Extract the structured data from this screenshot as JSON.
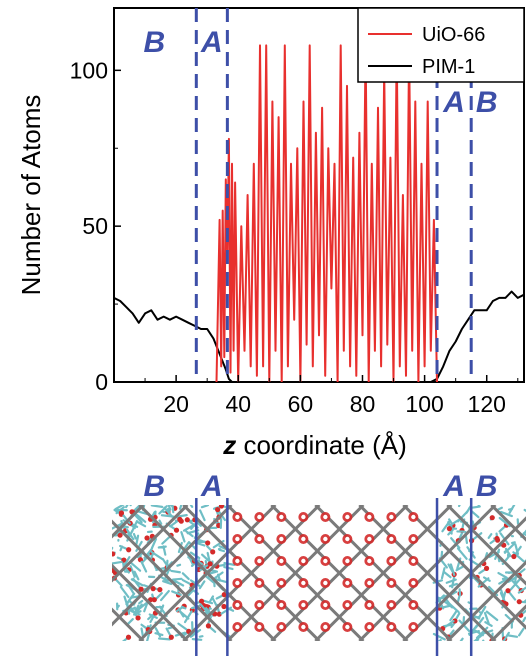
{
  "chart_data": {
    "type": "line",
    "xlabel_italic": "z",
    "xlabel_rest": " coordinate (Å)",
    "ylabel": "Number of Atoms",
    "xlim": [
      0,
      132
    ],
    "ylim": [
      0,
      120
    ],
    "x_ticks": [
      20,
      40,
      60,
      80,
      100,
      120
    ],
    "y_ticks": [
      0,
      50,
      100
    ],
    "legend_position": "top-right",
    "region_boundaries": [
      26.5,
      36.5,
      104.0,
      115.0
    ],
    "region_labels_top": [
      {
        "text": "B",
        "x": 13
      },
      {
        "text": "A",
        "x": 31.5
      },
      {
        "text": "A",
        "x": 109.5
      },
      {
        "text": "B",
        "x": 120
      }
    ],
    "region_labels_bottom": [
      {
        "text": "B",
        "x": 13
      },
      {
        "text": "A",
        "x": 31.5
      },
      {
        "text": "A",
        "x": 109.5
      },
      {
        "text": "B",
        "x": 120
      }
    ],
    "colors": {
      "uio66": "#e8302e",
      "pim1": "#000000",
      "regions": "#3d4fa8"
    },
    "series": [
      {
        "name": "UiO-66",
        "color": "#e8302e",
        "x": [
          33,
          34,
          34.5,
          35,
          35.5,
          36,
          36.5,
          37,
          37.5,
          38,
          38.5,
          39,
          40,
          41,
          42,
          43,
          44,
          45,
          46,
          47,
          48,
          49,
          50,
          51,
          52,
          53,
          54,
          55,
          56,
          57,
          58,
          59,
          60,
          61,
          62,
          63,
          64,
          65,
          66,
          67,
          68,
          69,
          70,
          71,
          72,
          73,
          74,
          75,
          76,
          77,
          78,
          79,
          80,
          81,
          82,
          83,
          84,
          85,
          86,
          87,
          88,
          89,
          90,
          91,
          92,
          93,
          94,
          95,
          96,
          97,
          98,
          99,
          100,
          101,
          102,
          103,
          104
        ],
        "values": [
          0,
          52,
          5,
          55,
          8,
          65,
          40,
          78,
          3,
          70,
          10,
          64,
          0,
          50,
          10,
          60,
          5,
          70,
          2,
          108,
          5,
          108,
          0,
          90,
          10,
          85,
          0,
          108,
          5,
          70,
          20,
          75,
          0,
          90,
          12,
          108,
          5,
          80,
          15,
          88,
          2,
          75,
          30,
          70,
          0,
          108,
          10,
          95,
          5,
          72,
          2,
          80,
          15,
          108,
          0,
          70,
          10,
          88,
          5,
          100,
          12,
          72,
          0,
          108,
          5,
          60,
          2,
          108,
          10,
          90,
          0,
          70,
          5,
          90,
          10,
          52,
          0
        ]
      },
      {
        "name": "PIM-1",
        "color": "#000000",
        "x": [
          0,
          2,
          4,
          6,
          8,
          10,
          12,
          14,
          16,
          18,
          20,
          22,
          24,
          26,
          28,
          30,
          32,
          34,
          36,
          37,
          38,
          39,
          40,
          100,
          102,
          104,
          106,
          108,
          110,
          112,
          114,
          116,
          118,
          120,
          122,
          124,
          126,
          128,
          130,
          132
        ],
        "values": [
          27,
          26,
          24,
          22,
          19,
          22,
          23,
          20,
          21,
          20,
          21,
          20,
          19,
          18,
          17,
          17,
          14,
          9,
          4,
          1,
          0,
          0,
          0,
          0,
          0,
          1,
          5,
          10,
          13,
          17,
          20,
          23,
          23,
          23,
          26,
          27,
          27,
          29,
          27,
          28
        ]
      }
    ]
  },
  "structure_image": {
    "colors": {
      "background": "#ffffff",
      "pim_color": "#6fbec5",
      "oxygen": "#d42a2a",
      "framework": "#7a7a7a",
      "boundary": "#3d4fa8"
    }
  }
}
